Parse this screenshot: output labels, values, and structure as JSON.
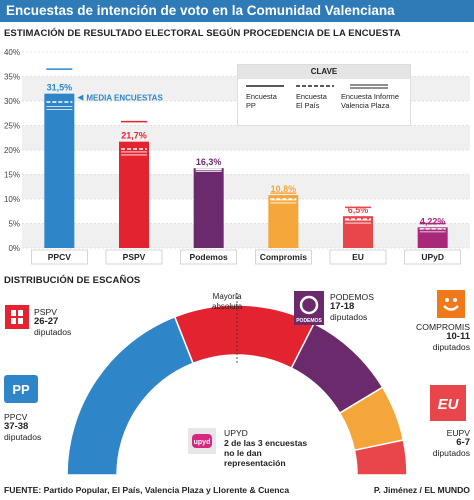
{
  "title": "Encuestas de intención de voto en la Comunidad Valenciana",
  "subtitle": "ESTIMACIÓN DE RESULTADO ELECTORAL SEGÚN PROCEDENCIA DE LA ENCUESTA",
  "media_label": "MEDIA ENCUESTAS",
  "legend": {
    "title": "CLAVE",
    "items": [
      {
        "line1": "Encuesta",
        "line2": "PP"
      },
      {
        "line1": "Encuesta",
        "line2": "El País"
      },
      {
        "line1": "Encuesta Informe",
        "line2": "Valencia Plaza"
      }
    ]
  },
  "chart_data": {
    "type": "bar",
    "categories": [
      "PPCV",
      "PSPV",
      "Podemos",
      "Compromís",
      "EU",
      "UPyD"
    ],
    "values": [
      31.5,
      21.7,
      16.3,
      10.8,
      6.5,
      4.22
    ],
    "value_labels": [
      "31,5%",
      "21,7%",
      "16,3%",
      "10,8%",
      "6,5%",
      "4,22%"
    ],
    "series": [
      {
        "name": "Encuesta PP",
        "values": [
          36.5,
          25.8,
          16.0,
          11.2,
          8.3,
          5.0
        ]
      },
      {
        "name": "Encuesta El País",
        "values": [
          29.8,
          20.2,
          17.0,
          10.0,
          5.9,
          3.9
        ]
      },
      {
        "name": "Encuesta Informe Valencia Plaza",
        "values": [
          28.6,
          19.3,
          15.9,
          9.5,
          5.4,
          3.6
        ]
      }
    ],
    "colors": [
      "#2e86c9",
      "#e3232f",
      "#6a2a6b",
      "#f4a63a",
      "#e8464b",
      "#a8297a"
    ],
    "yticks": [
      "0%",
      "5%",
      "10%",
      "15%",
      "20%",
      "25%",
      "30%",
      "35%",
      "40%"
    ],
    "ylim": [
      0,
      40
    ]
  },
  "seats_title": "DISTRIBUCIÓN DE ESCAÑOS",
  "majority": {
    "line1": "Mayoría",
    "line2": "absoluta"
  },
  "seats": [
    {
      "party": "PPCV",
      "seats": "37-38",
      "unit": "diputados",
      "color": "#2e86c9",
      "share": 37.5
    },
    {
      "party": "PSPV",
      "seats": "26-27",
      "unit": "diputados",
      "color": "#e3232f",
      "share": 26.5
    },
    {
      "party": "PODEMOS",
      "seats": "17-18",
      "unit": "diputados",
      "color": "#6a2a6b",
      "share": 17.5
    },
    {
      "party": "COMPROMIS",
      "seats": "10-11",
      "unit": "diputados",
      "color": "#f4a63a",
      "share": 10.5
    },
    {
      "party": "EUPV",
      "seats": "6-7",
      "unit": "diputados",
      "color": "#e8464b",
      "share": 6.5
    }
  ],
  "upyd": {
    "party": "UPYD",
    "line1": "2 de las 3 encuestas",
    "line2": "no le dan",
    "line3": "representación"
  },
  "logos": {
    "pspv": "PSPV",
    "pp": "PP",
    "podemos": "PODEMOS",
    "upyd": "upyd",
    "eu": "EU"
  },
  "footer_left": "FUENTE: Partido Popular, El País, Valencia Plaza y Llorente & Cuenca",
  "footer_right": "P. Jiménez / EL MUNDO"
}
